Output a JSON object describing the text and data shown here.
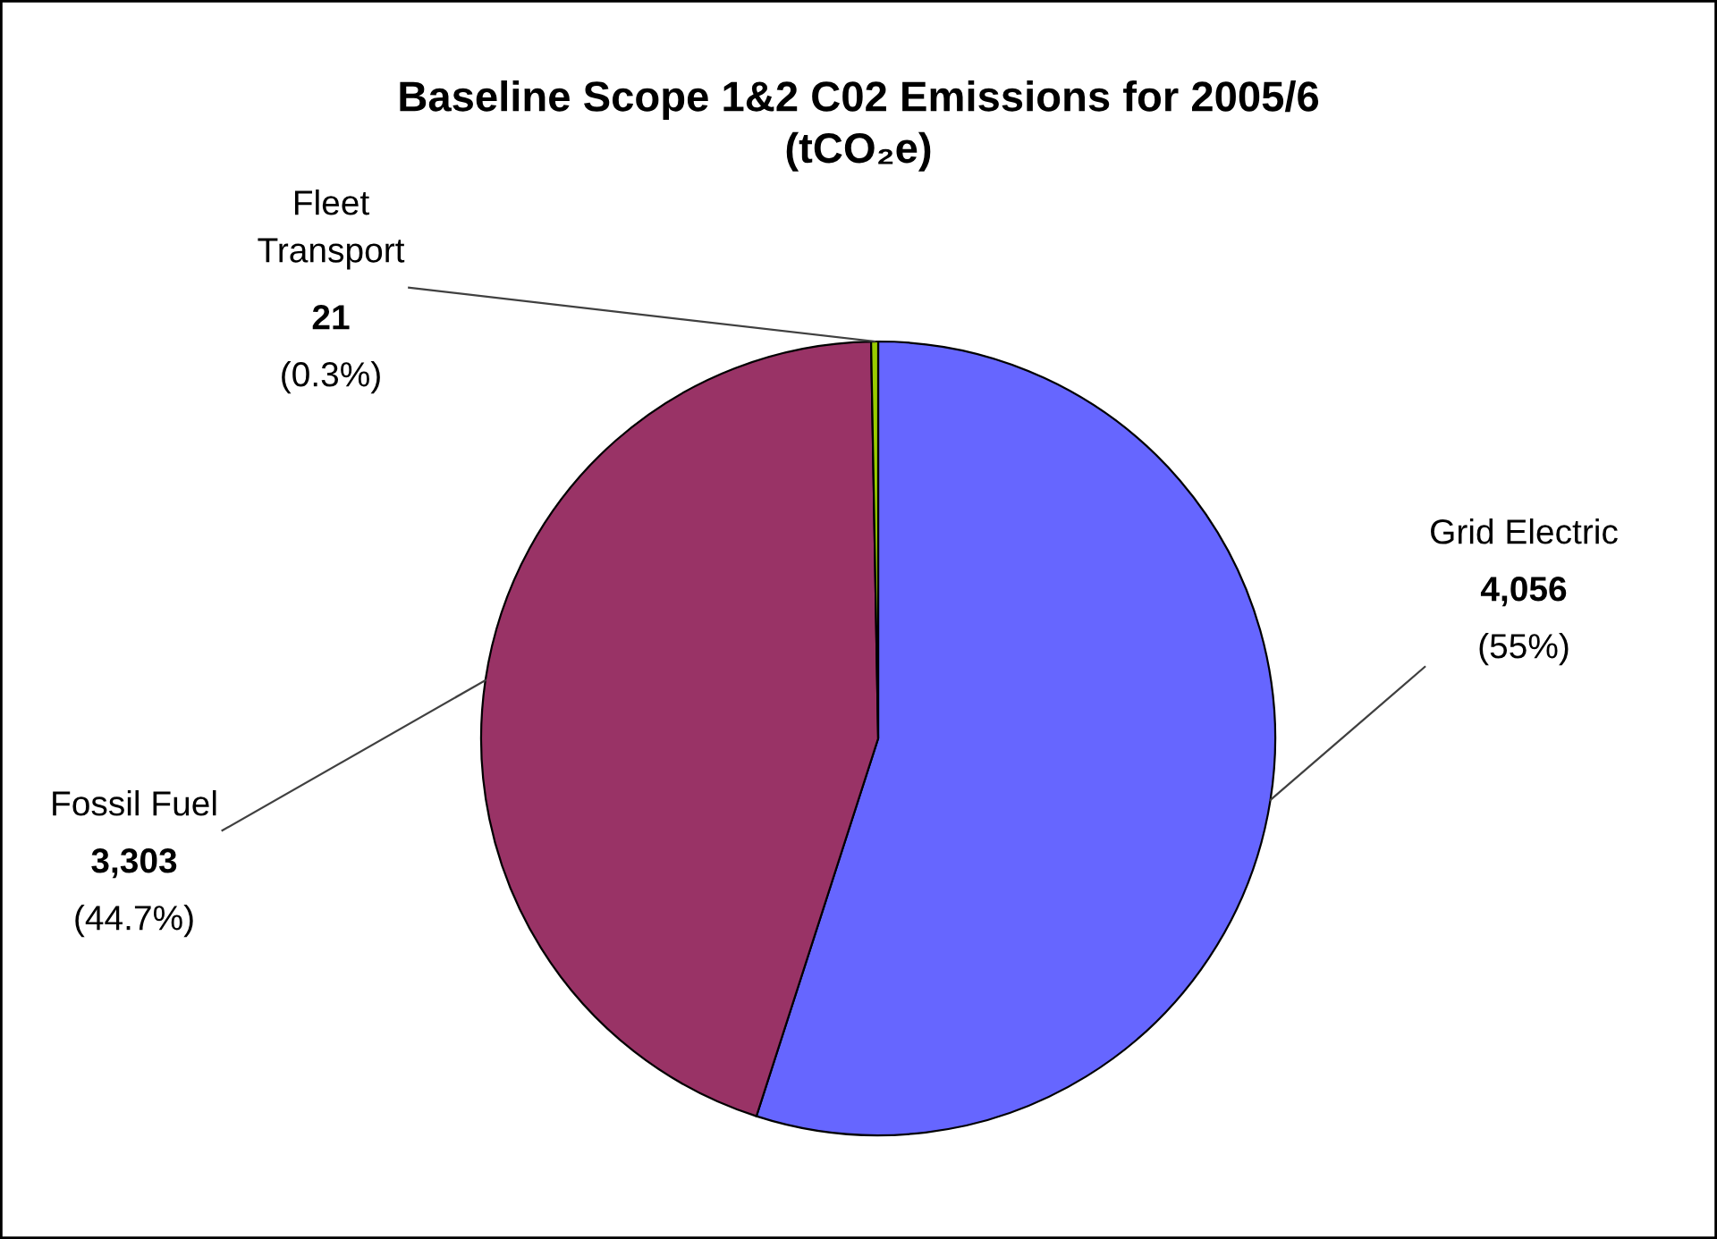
{
  "chart_data": {
    "type": "pie",
    "title": "Baseline Scope 1&2 C02 Emissions for 2005/6\n(tCO₂e)",
    "categories": [
      "Grid Electric",
      "Fossil Fuel",
      "Fleet\nTransport"
    ],
    "values": [
      4056,
      3303,
      21
    ],
    "colors": [
      "#6666ff",
      "#993366",
      "#99cc00"
    ],
    "value_labels": [
      "4,056\n(55%)",
      "3,303\n(44.7%)",
      "21\n(0.3%)"
    ],
    "legend": false
  }
}
